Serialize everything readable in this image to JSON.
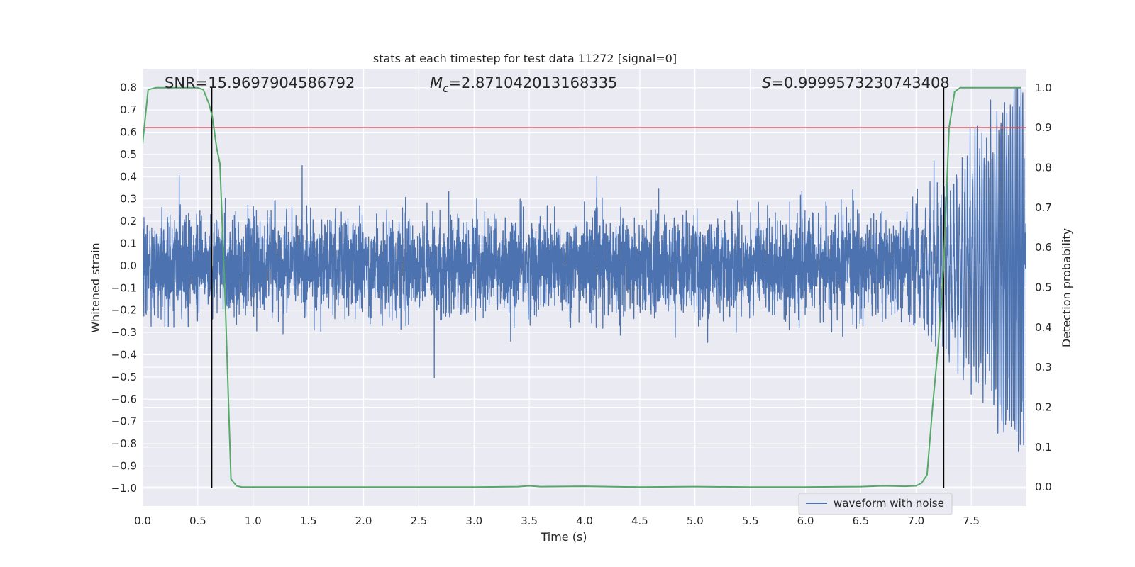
{
  "chart_data": {
    "type": "line",
    "title": "stats at each timestep for test data 11272 [signal=0]",
    "xlabel": "Time (s)",
    "ylabel": "Whitened strain",
    "ylabel_right": "Detection probability",
    "xlim": [
      0.0,
      8.0
    ],
    "ylim": [
      -1.08,
      0.885
    ],
    "ylim_right": [
      -0.0475,
      1.0475
    ],
    "x_ticks": [
      0.0,
      0.5,
      1.0,
      1.5,
      2.0,
      2.5,
      3.0,
      3.5,
      4.0,
      4.5,
      5.0,
      5.5,
      6.0,
      6.5,
      7.0,
      7.5
    ],
    "x_tick_labels": [
      "0.0",
      "0.5",
      "1.0",
      "1.5",
      "2.0",
      "2.5",
      "3.0",
      "3.5",
      "4.0",
      "4.5",
      "5.0",
      "5.5",
      "6.0",
      "6.5",
      "7.0",
      "7.5"
    ],
    "y_ticks": [
      0.8,
      0.7,
      0.6,
      0.5,
      0.4,
      0.3,
      0.2,
      0.1,
      0.0,
      -0.1,
      -0.2,
      -0.3,
      -0.4,
      -0.5,
      -0.6,
      -0.7,
      -0.8,
      -0.9,
      -1.0
    ],
    "y_tick_labels": [
      "0.8",
      "0.7",
      "0.6",
      "0.5",
      "0.4",
      "0.3",
      "0.2",
      "0.1",
      "0.0",
      "−0.1",
      "−0.2",
      "−0.3",
      "−0.4",
      "−0.5",
      "−0.6",
      "−0.7",
      "−0.8",
      "−0.9",
      "−1.0"
    ],
    "y_right_ticks": [
      1.0,
      0.9,
      0.8,
      0.7,
      0.6,
      0.5,
      0.4,
      0.3,
      0.2,
      0.1,
      0.0
    ],
    "y_right_tick_labels": [
      "1.0",
      "0.9",
      "0.8",
      "0.7",
      "0.6",
      "0.5",
      "0.4",
      "0.3",
      "0.2",
      "0.1",
      "0.0"
    ],
    "grid": true,
    "annotations": {
      "snr": "SNR=15.9697904586792",
      "mc_symbol": "M",
      "mc_sub": "c",
      "mc_value": "=2.871042013168335",
      "s_symbol": "S",
      "s_value": "=0.9999573230743408"
    },
    "legend": {
      "placement": "lower-right",
      "entries": [
        "waveform with noise"
      ]
    },
    "series": [
      {
        "name": "waveform with noise",
        "axis": "left",
        "color": "#4c72b0",
        "kind": "noisy-waveform",
        "noise_envelope_typical": 0.25,
        "noise_peak_positive": 0.48,
        "noise_peak_negative": -0.52,
        "chirp_start": 6.9,
        "chirp_end": 7.98,
        "chirp_peak_positive": 0.8,
        "chirp_peak_negative": -1.0
      },
      {
        "axis": "right",
        "color": "#55a868",
        "kind": "probability",
        "x": [
          0.0,
          0.05,
          0.12,
          0.2,
          0.3,
          0.4,
          0.5,
          0.55,
          0.6,
          0.63,
          0.67,
          0.7,
          0.75,
          0.8,
          0.85,
          0.9,
          1.0,
          1.5,
          2.0,
          2.5,
          3.0,
          3.4,
          3.5,
          3.6,
          4.0,
          4.5,
          5.0,
          5.5,
          6.0,
          6.5,
          6.7,
          6.9,
          7.0,
          7.05,
          7.1,
          7.15,
          7.2,
          7.25,
          7.3,
          7.35,
          7.4,
          7.5,
          7.6,
          7.7,
          7.8,
          7.9,
          7.95
        ],
        "values": [
          0.86,
          0.995,
          1.0,
          1.0,
          1.0,
          1.0,
          1.0,
          0.995,
          0.96,
          0.93,
          0.85,
          0.81,
          0.45,
          0.02,
          0.003,
          0.0,
          0.0,
          0.0,
          0.0,
          0.0,
          0.0,
          0.001,
          0.003,
          0.001,
          0.002,
          0.0,
          0.001,
          0.0,
          0.0,
          0.001,
          0.003,
          0.002,
          0.003,
          0.01,
          0.03,
          0.2,
          0.35,
          0.55,
          0.9,
          0.99,
          1.0,
          1.0,
          1.0,
          1.0,
          1.0,
          1.0,
          1.0
        ]
      }
    ],
    "threshold_line": {
      "axis": "right",
      "value": 0.9,
      "color": "#c44e52"
    },
    "vertical_lines": [
      {
        "x": 0.625,
        "color": "#000000",
        "ymin_left": -1.0,
        "ymax_right": 1.0
      },
      {
        "x": 7.25,
        "color": "#000000",
        "ymin_left": -1.0,
        "ymax_right": 1.0
      }
    ]
  }
}
